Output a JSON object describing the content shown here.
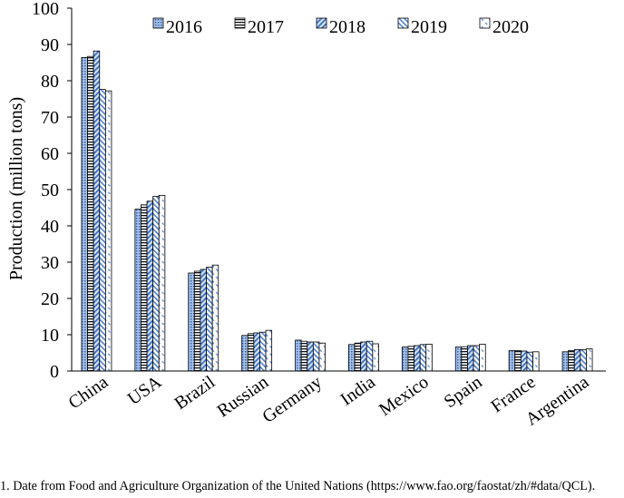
{
  "chart_data": {
    "type": "bar",
    "title": "",
    "xlabel": "",
    "ylabel": "Production (million tons)",
    "ylim": [
      0,
      100
    ],
    "yticks": [
      "0",
      "10",
      "20",
      "30",
      "40",
      "50",
      "60",
      "70",
      "80",
      "90",
      "100"
    ],
    "grid": false,
    "legend_position": "top",
    "categories": [
      "China",
      "USA",
      "Brazil",
      "Russian",
      "Germany",
      "India",
      "Mexico",
      "Spain",
      "France",
      "Argentina"
    ],
    "series": [
      {
        "name": "2016",
        "pattern": "dots",
        "values": [
          86.4,
          44.6,
          27.0,
          9.8,
          8.5,
          7.3,
          6.6,
          6.6,
          5.6,
          5.3
        ]
      },
      {
        "name": "2017",
        "pattern": "horizontal",
        "values": [
          86.7,
          45.8,
          27.5,
          10.3,
          8.2,
          7.7,
          6.8,
          6.7,
          5.6,
          5.6
        ]
      },
      {
        "name": "2018",
        "pattern": "diagonal",
        "values": [
          88.2,
          46.8,
          28.0,
          10.5,
          8.0,
          8.0,
          7.0,
          7.0,
          5.5,
          5.9
        ]
      },
      {
        "name": "2019",
        "pattern": "back-diagonal",
        "values": [
          77.6,
          48.1,
          28.6,
          10.7,
          8.0,
          8.2,
          7.3,
          7.0,
          5.2,
          5.9
        ]
      },
      {
        "name": "2020",
        "pattern": "sparse",
        "values": [
          77.2,
          48.4,
          29.2,
          11.2,
          7.7,
          7.5,
          7.4,
          7.4,
          5.3,
          6.1
        ]
      }
    ],
    "colors": {
      "fill": "#7fa3d8",
      "light": "#c6d7ef",
      "dark": "#3a6fc0",
      "stroke": "#000000"
    }
  },
  "footnote": "1. Date from Food and Agriculture Organization of the United Nations (https://www.fao.org/faostat/zh/#data/QCL)."
}
